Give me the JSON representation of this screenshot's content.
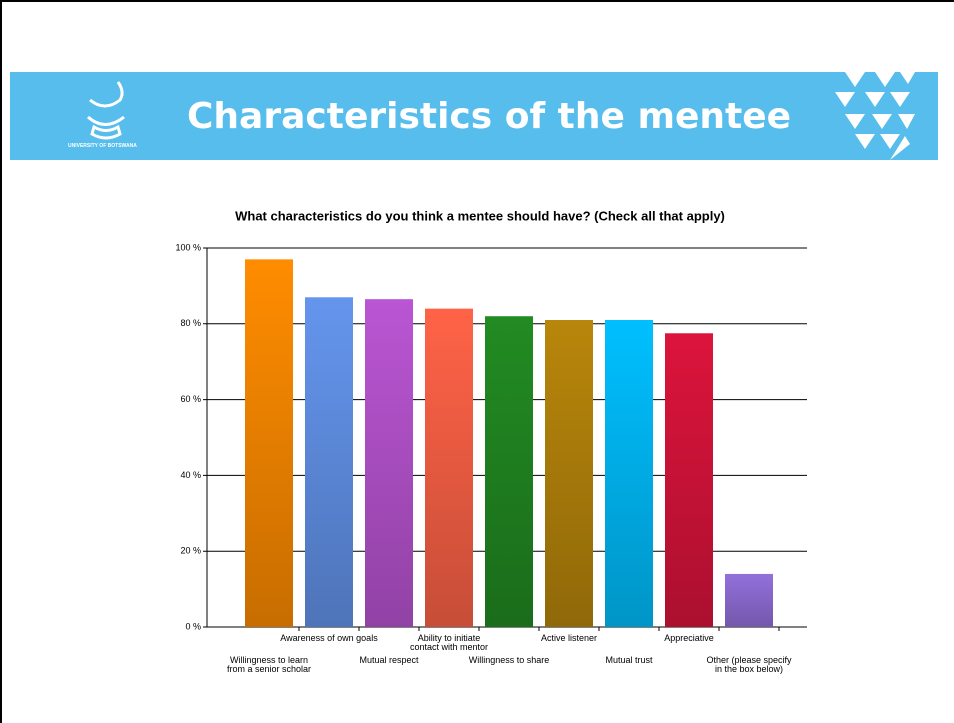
{
  "slide": {
    "title": "Characteristics of the mentee",
    "logo_text": "UNIVERSITY OF BOTSWANA"
  },
  "chart_data": {
    "type": "bar",
    "title": "What characteristics do you think a mentee should have? (Check all that apply)",
    "categories": [
      "Willingness to learn\nfrom a senior scholar",
      "Awareness of own goals",
      "Mutual respect",
      "Ability to initiate\ncontact with mentor",
      "Willingness to share",
      "Active listener",
      "Mutual trust",
      "Appreciative",
      "Other (please specify\nin the box below)"
    ],
    "values": [
      97,
      87,
      86.5,
      84,
      82,
      81,
      81,
      77.5,
      14
    ],
    "colors": [
      "#ff8c00",
      "#6495ed",
      "#ba55d3",
      "#ff6347",
      "#228b22",
      "#b8860b",
      "#00bfff",
      "#dc143c",
      "#9370db"
    ],
    "ylim": [
      0,
      100
    ],
    "yticks": [
      {
        "value": 0,
        "label": "0 %"
      },
      {
        "value": 20,
        "label": "20 %"
      },
      {
        "value": 40,
        "label": "40 %"
      },
      {
        "value": 60,
        "label": "60 %"
      },
      {
        "value": 80,
        "label": "80 %"
      },
      {
        "value": 100,
        "label": "100 %"
      }
    ],
    "grid": true
  }
}
